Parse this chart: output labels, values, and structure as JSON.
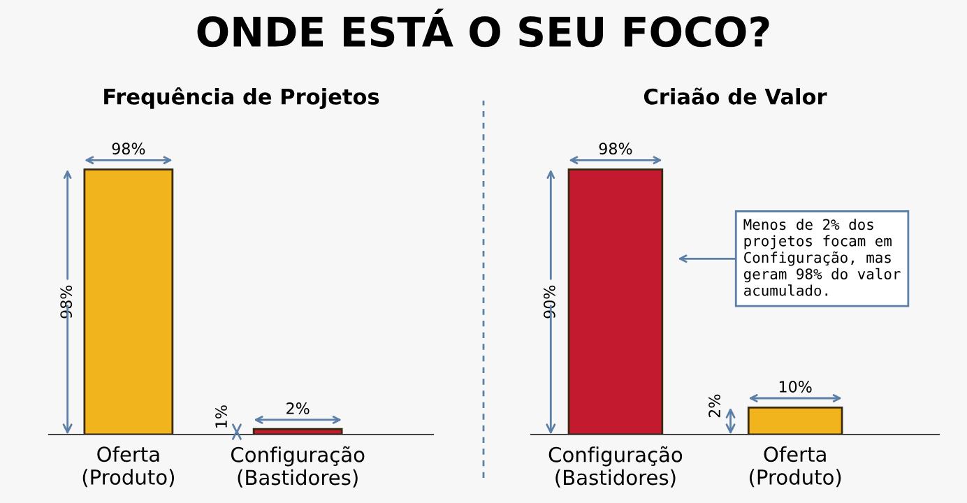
{
  "chart_data": [
    {
      "type": "bar",
      "title": "ONDE ESTÁ O SEU FOCO?",
      "subtitle": "Frequência de Projetos",
      "categories": [
        "Oferta\n(Produto)",
        "Configuração\n(Bastidores)"
      ],
      "values": [
        98,
        2
      ],
      "colors": [
        "#f2b41c",
        "#c41a2f"
      ],
      "value_labels": [
        "98%",
        "2%"
      ],
      "annotations": [
        "98%",
        "1%"
      ],
      "grid": false,
      "legend": false
    },
    {
      "type": "bar",
      "subtitle": "Criaão de Valor",
      "categories": [
        "Configuração\n(Bastidores)",
        "Oferta\n(Produto)"
      ],
      "values": [
        98,
        10
      ],
      "colors": [
        "#c41a2f",
        "#f2b41c"
      ],
      "value_labels": [
        "98%",
        "10%"
      ],
      "annotations": [
        "90%",
        "2%",
        "Menos de 2% dos\nprojetos focam em\nConfiguração, mas\ngeram 98% do valor\nacumulado."
      ],
      "grid": false,
      "legend": false
    }
  ]
}
